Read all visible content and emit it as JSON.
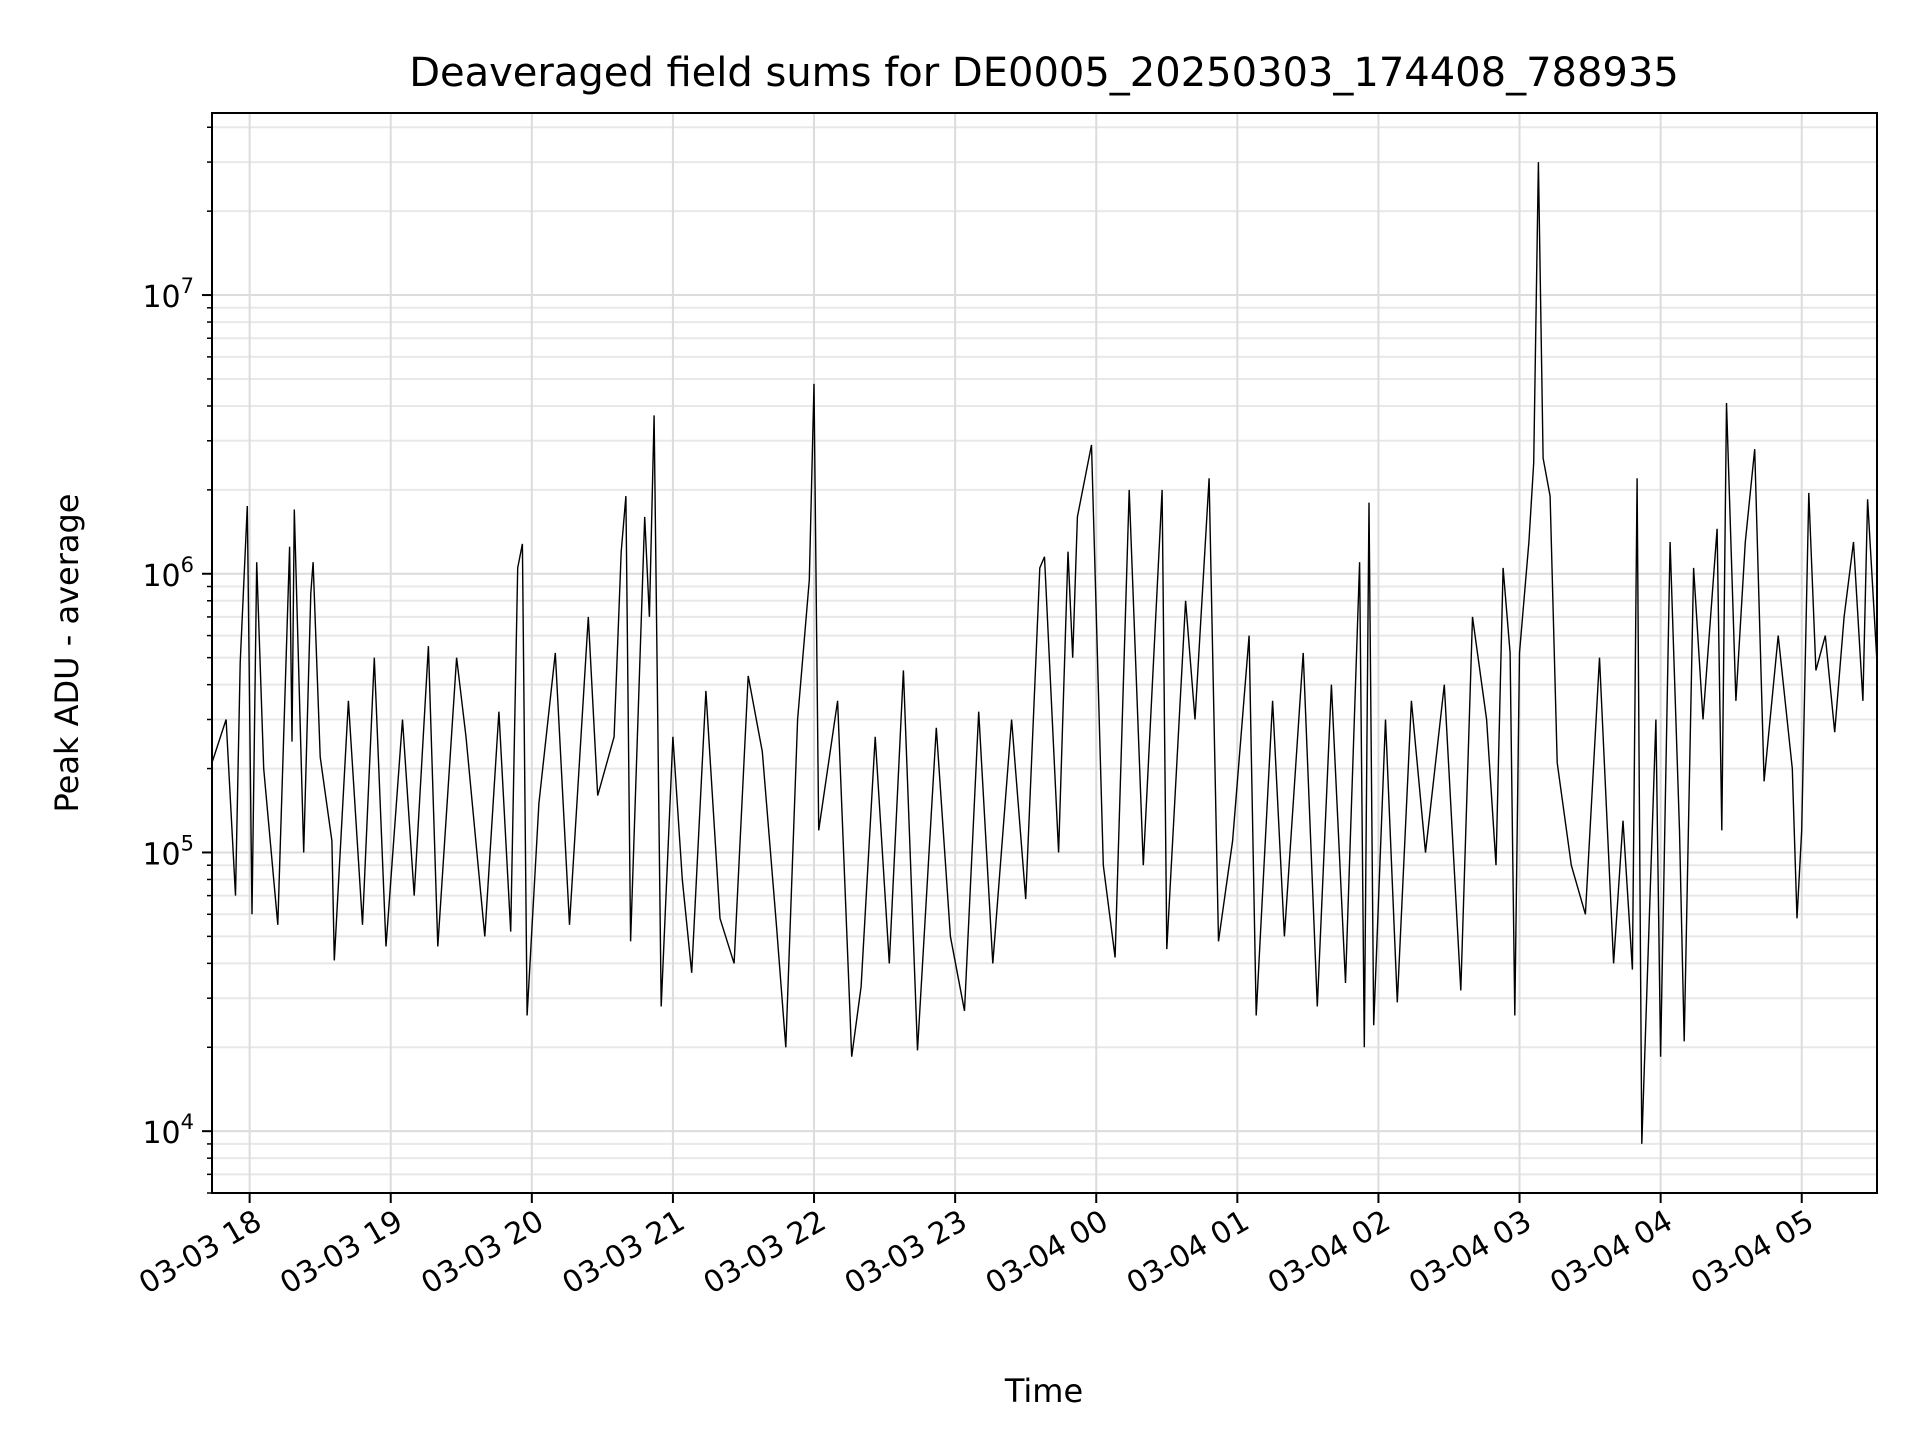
{
  "chart_data": {
    "type": "line",
    "title": "Deaveraged field sums for DE0005_20250303_174408_788935",
    "xlabel": "Time",
    "ylabel": "Peak ADU - average",
    "y_scale": "log",
    "ylim": [
      6000,
      45000000
    ],
    "xlim": [
      "2025-03-03 17:44",
      "2025-03-04 05:32"
    ],
    "x_ticks": [
      "03-03 18",
      "03-03 19",
      "03-03 20",
      "03-03 21",
      "03-03 22",
      "03-03 23",
      "03-04 00",
      "03-04 01",
      "03-04 02",
      "03-04 03",
      "03-04 04",
      "03-04 05"
    ],
    "y_ticks": [
      {
        "value": 10000,
        "base": "10",
        "exp": "4"
      },
      {
        "value": 100000,
        "base": "10",
        "exp": "5"
      },
      {
        "value": 1000000,
        "base": "10",
        "exp": "6"
      },
      {
        "value": 10000000,
        "base": "10",
        "exp": "7"
      }
    ],
    "grid": true,
    "line_color": "#000000",
    "series": [
      {
        "points": [
          [
            "2025-03-03 17:44",
            210000
          ],
          [
            "2025-03-03 17:50",
            300000
          ],
          [
            "2025-03-03 17:54",
            70000
          ],
          [
            "2025-03-03 17:56",
            480000
          ],
          [
            "2025-03-03 17:59",
            1750000
          ],
          [
            "2025-03-03 18:01",
            60000
          ],
          [
            "2025-03-03 18:03",
            1100000
          ],
          [
            "2025-03-03 18:06",
            200000
          ],
          [
            "2025-03-03 18:12",
            55000
          ],
          [
            "2025-03-03 18:17",
            1250000
          ],
          [
            "2025-03-03 18:18",
            250000
          ],
          [
            "2025-03-03 18:19",
            1700000
          ],
          [
            "2025-03-03 18:23",
            100000
          ],
          [
            "2025-03-03 18:26",
            850000
          ],
          [
            "2025-03-03 18:27",
            1100000
          ],
          [
            "2025-03-03 18:30",
            220000
          ],
          [
            "2025-03-03 18:35",
            110000
          ],
          [
            "2025-03-03 18:36",
            41000
          ],
          [
            "2025-03-03 18:42",
            350000
          ],
          [
            "2025-03-03 18:48",
            55000
          ],
          [
            "2025-03-03 18:53",
            500000
          ],
          [
            "2025-03-03 18:58",
            46000
          ],
          [
            "2025-03-03 19:05",
            300000
          ],
          [
            "2025-03-03 19:10",
            70000
          ],
          [
            "2025-03-03 19:16",
            550000
          ],
          [
            "2025-03-03 19:20",
            46000
          ],
          [
            "2025-03-03 19:28",
            500000
          ],
          [
            "2025-03-03 19:32",
            260000
          ],
          [
            "2025-03-03 19:40",
            50000
          ],
          [
            "2025-03-03 19:46",
            320000
          ],
          [
            "2025-03-03 19:51",
            52000
          ],
          [
            "2025-03-03 19:54",
            1050000
          ],
          [
            "2025-03-03 19:56",
            1280000
          ],
          [
            "2025-03-03 19:58",
            26000
          ],
          [
            "2025-03-03 20:03",
            150000
          ],
          [
            "2025-03-03 20:10",
            520000
          ],
          [
            "2025-03-03 20:16",
            55000
          ],
          [
            "2025-03-03 20:24",
            700000
          ],
          [
            "2025-03-03 20:28",
            160000
          ],
          [
            "2025-03-03 20:35",
            260000
          ],
          [
            "2025-03-03 20:38",
            1200000
          ],
          [
            "2025-03-03 20:40",
            1900000
          ],
          [
            "2025-03-03 20:42",
            48000
          ],
          [
            "2025-03-03 20:46",
            500000
          ],
          [
            "2025-03-03 20:48",
            1600000
          ],
          [
            "2025-03-03 20:50",
            700000
          ],
          [
            "2025-03-03 20:52",
            3700000
          ],
          [
            "2025-03-03 20:55",
            28000
          ],
          [
            "2025-03-03 21:00",
            260000
          ],
          [
            "2025-03-03 21:04",
            80000
          ],
          [
            "2025-03-03 21:08",
            37000
          ],
          [
            "2025-03-03 21:14",
            380000
          ],
          [
            "2025-03-03 21:20",
            58000
          ],
          [
            "2025-03-03 21:26",
            40000
          ],
          [
            "2025-03-03 21:32",
            430000
          ],
          [
            "2025-03-03 21:38",
            230000
          ],
          [
            "2025-03-03 21:44",
            55000
          ],
          [
            "2025-03-03 21:48",
            20000
          ],
          [
            "2025-03-03 21:53",
            300000
          ],
          [
            "2025-03-03 21:58",
            950000
          ],
          [
            "2025-03-03 22:00",
            4800000
          ],
          [
            "2025-03-03 22:02",
            120000
          ],
          [
            "2025-03-03 22:10",
            350000
          ],
          [
            "2025-03-03 22:16",
            18500
          ],
          [
            "2025-03-03 22:20",
            33000
          ],
          [
            "2025-03-03 22:26",
            260000
          ],
          [
            "2025-03-03 22:32",
            40000
          ],
          [
            "2025-03-03 22:38",
            450000
          ],
          [
            "2025-03-03 22:44",
            19500
          ],
          [
            "2025-03-03 22:52",
            280000
          ],
          [
            "2025-03-03 22:58",
            50000
          ],
          [
            "2025-03-03 23:04",
            27000
          ],
          [
            "2025-03-03 23:10",
            320000
          ],
          [
            "2025-03-03 23:16",
            40000
          ],
          [
            "2025-03-03 23:24",
            300000
          ],
          [
            "2025-03-03 23:30",
            68000
          ],
          [
            "2025-03-03 23:36",
            1050000
          ],
          [
            "2025-03-03 23:38",
            1150000
          ],
          [
            "2025-03-03 23:44",
            100000
          ],
          [
            "2025-03-03 23:48",
            1200000
          ],
          [
            "2025-03-03 23:50",
            500000
          ],
          [
            "2025-03-03 23:52",
            1600000
          ],
          [
            "2025-03-03 23:58",
            2900000
          ],
          [
            "2025-03-04 00:03",
            90000
          ],
          [
            "2025-03-04 00:08",
            42000
          ],
          [
            "2025-03-04 00:14",
            2000000
          ],
          [
            "2025-03-04 00:20",
            90000
          ],
          [
            "2025-03-04 00:28",
            2000000
          ],
          [
            "2025-03-04 00:30",
            45000
          ],
          [
            "2025-03-04 00:38",
            800000
          ],
          [
            "2025-03-04 00:42",
            300000
          ],
          [
            "2025-03-04 00:48",
            2200000
          ],
          [
            "2025-03-04 00:52",
            48000
          ],
          [
            "2025-03-04 00:58",
            110000
          ],
          [
            "2025-03-04 01:05",
            600000
          ],
          [
            "2025-03-04 01:08",
            26000
          ],
          [
            "2025-03-04 01:15",
            350000
          ],
          [
            "2025-03-04 01:20",
            50000
          ],
          [
            "2025-03-04 01:28",
            520000
          ],
          [
            "2025-03-04 01:34",
            28000
          ],
          [
            "2025-03-04 01:40",
            400000
          ],
          [
            "2025-03-04 01:46",
            34000
          ],
          [
            "2025-03-04 01:52",
            1100000
          ],
          [
            "2025-03-04 01:54",
            20000
          ],
          [
            "2025-03-04 01:56",
            1800000
          ],
          [
            "2025-03-04 01:58",
            24000
          ],
          [
            "2025-03-04 02:03",
            300000
          ],
          [
            "2025-03-04 02:08",
            29000
          ],
          [
            "2025-03-04 02:14",
            350000
          ],
          [
            "2025-03-04 02:20",
            100000
          ],
          [
            "2025-03-04 02:28",
            400000
          ],
          [
            "2025-03-04 02:35",
            32000
          ],
          [
            "2025-03-04 02:40",
            700000
          ],
          [
            "2025-03-04 02:46",
            300000
          ],
          [
            "2025-03-04 02:50",
            90000
          ],
          [
            "2025-03-04 02:53",
            1050000
          ],
          [
            "2025-03-04 02:56",
            520000
          ],
          [
            "2025-03-04 02:58",
            26000
          ],
          [
            "2025-03-04 03:00",
            520000
          ],
          [
            "2025-03-04 03:04",
            1300000
          ],
          [
            "2025-03-04 03:06",
            2500000
          ],
          [
            "2025-03-04 03:08",
            30000000
          ],
          [
            "2025-03-04 03:10",
            2600000
          ],
          [
            "2025-03-04 03:13",
            1900000
          ],
          [
            "2025-03-04 03:16",
            210000
          ],
          [
            "2025-03-04 03:22",
            90000
          ],
          [
            "2025-03-04 03:28",
            60000
          ],
          [
            "2025-03-04 03:34",
            500000
          ],
          [
            "2025-03-04 03:40",
            40000
          ],
          [
            "2025-03-04 03:44",
            130000
          ],
          [
            "2025-03-04 03:48",
            38000
          ],
          [
            "2025-03-04 03:50",
            2200000
          ],
          [
            "2025-03-04 03:52",
            9000
          ],
          [
            "2025-03-04 03:58",
            300000
          ],
          [
            "2025-03-04 04:00",
            18500
          ],
          [
            "2025-03-04 04:04",
            1300000
          ],
          [
            "2025-03-04 04:08",
            120000
          ],
          [
            "2025-03-04 04:10",
            21000
          ],
          [
            "2025-03-04 04:14",
            1050000
          ],
          [
            "2025-03-04 04:18",
            300000
          ],
          [
            "2025-03-04 04:24",
            1450000
          ],
          [
            "2025-03-04 04:26",
            120000
          ],
          [
            "2025-03-04 04:28",
            4100000
          ],
          [
            "2025-03-04 04:32",
            350000
          ],
          [
            "2025-03-04 04:36",
            1300000
          ],
          [
            "2025-03-04 04:40",
            2800000
          ],
          [
            "2025-03-04 04:44",
            180000
          ],
          [
            "2025-03-04 04:50",
            600000
          ],
          [
            "2025-03-04 04:56",
            200000
          ],
          [
            "2025-03-04 04:58",
            58000
          ],
          [
            "2025-03-04 05:00",
            120000
          ],
          [
            "2025-03-04 05:03",
            1950000
          ],
          [
            "2025-03-04 05:06",
            450000
          ],
          [
            "2025-03-04 05:10",
            600000
          ],
          [
            "2025-03-04 05:14",
            270000
          ],
          [
            "2025-03-04 05:18",
            700000
          ],
          [
            "2025-03-04 05:22",
            1300000
          ],
          [
            "2025-03-04 05:26",
            350000
          ],
          [
            "2025-03-04 05:28",
            1850000
          ],
          [
            "2025-03-04 05:32",
            480000
          ]
        ]
      }
    ]
  }
}
